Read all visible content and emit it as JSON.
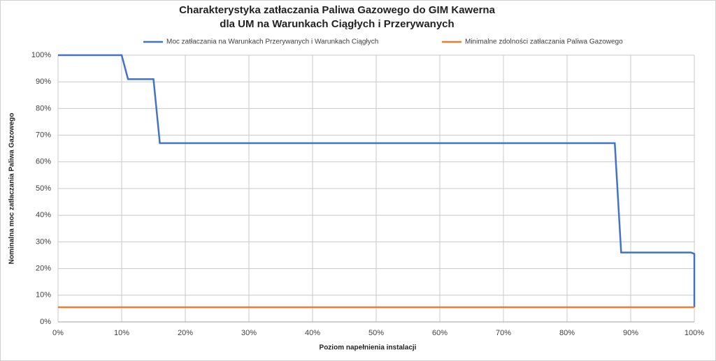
{
  "chart_data": {
    "type": "line",
    "title": [
      "Charakterystyka zatłaczania Paliwa Gazowego do GIM Kawerna",
      "dla UM na Warunkach Ciągłych i Przerywanych"
    ],
    "x_label": "Poziom napełnienia instalacji",
    "y_label": "Nominalna moc zatłaczania Paliwa Gazowego",
    "series": [
      {
        "name": "Moc zatłaczania na Warunkach Przerywanych i Warunkach Ciągłych",
        "color": "#4472c4",
        "x": [
          0,
          10,
          11,
          15,
          16,
          87.5,
          88.5,
          99.5,
          100,
          100
        ],
        "values": [
          100,
          100,
          91,
          91,
          67,
          67,
          26,
          26,
          25.5,
          5.5
        ]
      },
      {
        "name": "Minimalne zdolności zatłaczania Paliwa Gazowego",
        "color": "#ed7d31",
        "x": [
          0,
          100
        ],
        "values": [
          5.5,
          5.5
        ]
      }
    ],
    "xlim": [
      0,
      100
    ],
    "xticks": [
      {
        "value": 0,
        "label": "0%"
      },
      {
        "value": 10,
        "label": "10%"
      },
      {
        "value": 20,
        "label": "20%"
      },
      {
        "value": 30,
        "label": "30%"
      },
      {
        "value": 40,
        "label": "40%"
      },
      {
        "value": 50,
        "label": "50%"
      },
      {
        "value": 60,
        "label": "60%"
      },
      {
        "value": 70,
        "label": "70%"
      },
      {
        "value": 80,
        "label": "80%"
      },
      {
        "value": 90,
        "label": "90%"
      },
      {
        "value": 100,
        "label": "100%"
      }
    ],
    "ylim": [
      0,
      100
    ],
    "yticks": [
      {
        "value": 0,
        "label": "0%"
      },
      {
        "value": 10,
        "label": "10%"
      },
      {
        "value": 20,
        "label": "20%"
      },
      {
        "value": 30,
        "label": "30%"
      },
      {
        "value": 40,
        "label": "40%"
      },
      {
        "value": 50,
        "label": "50%"
      },
      {
        "value": 60,
        "label": "60%"
      },
      {
        "value": 70,
        "label": "70%"
      },
      {
        "value": 80,
        "label": "80%"
      },
      {
        "value": 90,
        "label": "90%"
      },
      {
        "value": 100,
        "label": "100%"
      }
    ],
    "grid": true
  }
}
